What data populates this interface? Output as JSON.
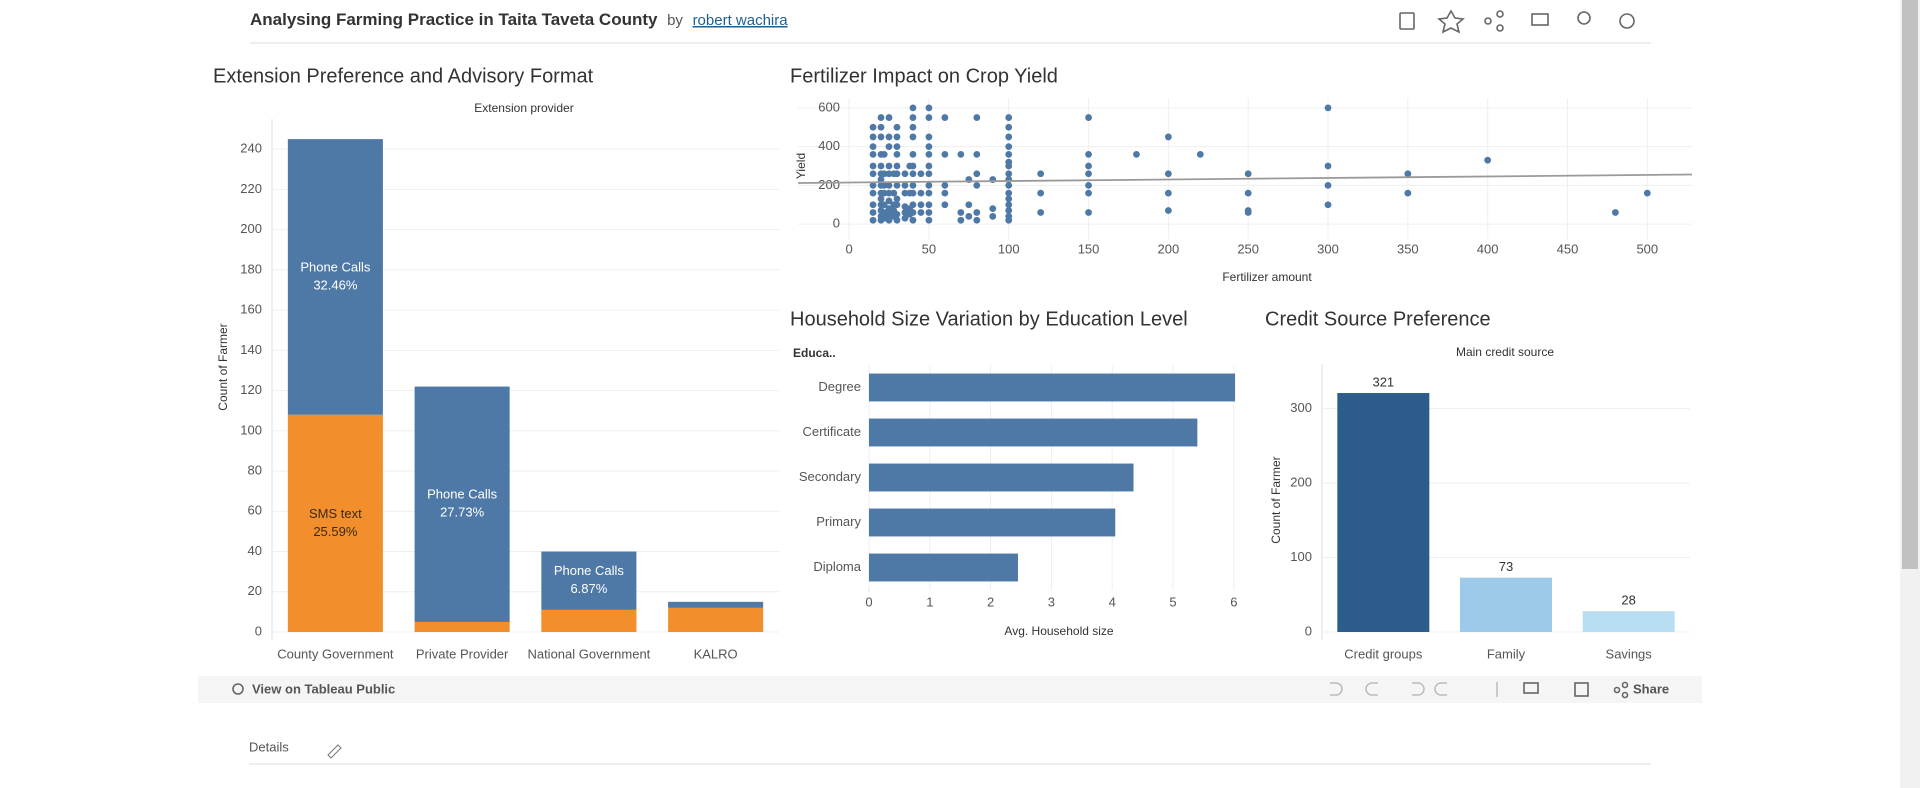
{
  "header": {
    "title": "Analysing Farming Practice in Taita Taveta County",
    "by": "by",
    "author": "robert wachira"
  },
  "chart_data": [
    {
      "type": "bar",
      "title": "Extension Preference and Advisory Format",
      "header": "Extension provider",
      "y_label": "Count of Farmer",
      "stacked": true,
      "categories": [
        "County Government",
        "Private Provider",
        "National Government",
        "KALRO"
      ],
      "series": [
        {
          "name": "SMS text",
          "color": "#f28e2b",
          "label_color": "#3b2a17",
          "values": [
            108,
            5,
            11,
            12
          ],
          "segment_labels": [
            "25.59%",
            null,
            null,
            null
          ]
        },
        {
          "name": "Phone Calls",
          "color": "#4e79a7",
          "label_color": "#ffffff",
          "values": [
            137,
            117,
            29,
            3
          ],
          "segment_labels": [
            "32.46%",
            "27.73%",
            "6.87%",
            null
          ]
        }
      ],
      "ylim": [
        0,
        255
      ],
      "yticks": [
        0,
        20,
        40,
        60,
        80,
        100,
        120,
        140,
        160,
        180,
        200,
        220,
        240
      ],
      "grid": true
    },
    {
      "type": "scatter",
      "title": "Fertilizer Impact on Crop Yield",
      "x_label": "Fertilizer amount",
      "y_label": "Yield",
      "color": "#4e79a7",
      "x": [
        15,
        15,
        15,
        15,
        15,
        15,
        15,
        15,
        15,
        15,
        15,
        20,
        20,
        20,
        20,
        20,
        20,
        20,
        20,
        20,
        20,
        20,
        20,
        20,
        20,
        22,
        22,
        22,
        22,
        22,
        22,
        22,
        25,
        25,
        25,
        25,
        25,
        25,
        25,
        25,
        25,
        25,
        25,
        28,
        28,
        28,
        28,
        28,
        30,
        30,
        30,
        30,
        30,
        30,
        30,
        30,
        30,
        30,
        30,
        35,
        35,
        35,
        35,
        35,
        35,
        38,
        38,
        38,
        38,
        40,
        40,
        40,
        40,
        40,
        40,
        40,
        40,
        40,
        40,
        40,
        40,
        45,
        45,
        45,
        45,
        50,
        50,
        50,
        50,
        50,
        50,
        50,
        50,
        50,
        50,
        50,
        50,
        60,
        60,
        60,
        60,
        60,
        70,
        70,
        70,
        75,
        75,
        75,
        80,
        80,
        80,
        80,
        80,
        80,
        90,
        90,
        90,
        100,
        100,
        100,
        100,
        100,
        100,
        100,
        100,
        100,
        100,
        100,
        100,
        100,
        100,
        100,
        100,
        120,
        120,
        120,
        150,
        150,
        150,
        150,
        150,
        150,
        150,
        180,
        200,
        200,
        200,
        200,
        220,
        250,
        250,
        250,
        250,
        300,
        300,
        300,
        300,
        350,
        350,
        400,
        480,
        500
      ],
      "y": [
        20,
        60,
        100,
        160,
        200,
        260,
        300,
        360,
        400,
        450,
        500,
        20,
        40,
        70,
        100,
        130,
        160,
        200,
        230,
        260,
        300,
        360,
        450,
        500,
        550,
        30,
        60,
        100,
        160,
        200,
        260,
        360,
        20,
        50,
        80,
        120,
        160,
        200,
        260,
        300,
        400,
        450,
        550,
        40,
        70,
        100,
        160,
        260,
        20,
        50,
        100,
        130,
        200,
        260,
        300,
        360,
        400,
        450,
        500,
        30,
        60,
        90,
        160,
        200,
        260,
        50,
        80,
        160,
        300,
        20,
        60,
        100,
        160,
        200,
        260,
        300,
        360,
        450,
        500,
        550,
        600,
        60,
        100,
        160,
        260,
        20,
        60,
        100,
        160,
        200,
        260,
        300,
        360,
        400,
        450,
        550,
        600,
        100,
        160,
        200,
        360,
        550,
        20,
        60,
        360,
        40,
        100,
        230,
        20,
        60,
        200,
        260,
        360,
        550,
        40,
        80,
        230,
        20,
        40,
        70,
        100,
        130,
        160,
        200,
        230,
        260,
        300,
        320,
        360,
        400,
        450,
        500,
        550,
        60,
        160,
        260,
        60,
        160,
        200,
        260,
        300,
        360,
        550,
        360,
        70,
        160,
        260,
        450,
        360,
        60,
        70,
        160,
        260,
        100,
        200,
        300,
        600,
        160,
        260,
        330,
        60,
        160
      ],
      "trend": {
        "color": "#9a9a9a",
        "x": [
          -32,
          528
        ],
        "y": [
          212,
          256
        ]
      },
      "xlim": [
        -32,
        528
      ],
      "xticks": [
        0,
        50,
        100,
        150,
        200,
        250,
        300,
        350,
        400,
        450,
        500
      ],
      "ylim": [
        -77,
        651
      ],
      "yticks": [
        0,
        200,
        400,
        600
      ],
      "grid": true
    },
    {
      "type": "bar",
      "orientation": "horizontal",
      "title": "Household Size Variation by Education Level",
      "header": "Educa..",
      "x_label": "Avg. Household size",
      "color": "#4e79a7",
      "categories": [
        "Degree",
        "Certificate",
        "Secondary",
        "Primary",
        "Diploma"
      ],
      "values": [
        6.02,
        5.4,
        4.35,
        4.05,
        2.45
      ],
      "xlim": [
        0,
        6.2
      ],
      "xticks": [
        0,
        1,
        2,
        3,
        4,
        5,
        6
      ],
      "grid": true
    },
    {
      "type": "bar",
      "title": "Credit Source Preference",
      "header": "Main credit source",
      "y_label": "Count of Farmer",
      "categories": [
        "Credit groups",
        "Family",
        "Savings"
      ],
      "values": [
        321,
        73,
        28
      ],
      "colors": [
        "#2b5c8a",
        "#9ecae9",
        "#b9ddf1"
      ],
      "ylim": [
        0,
        360
      ],
      "yticks": [
        0,
        100,
        200,
        300
      ],
      "grid": true
    }
  ],
  "footer": {
    "tableau_link": "View on Tableau Public",
    "share": "Share",
    "details": "Details"
  }
}
